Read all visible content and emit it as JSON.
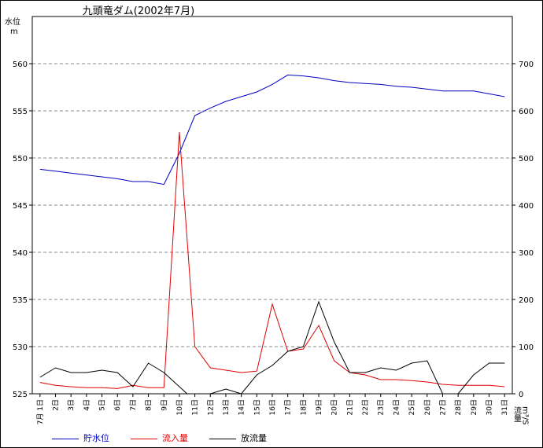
{
  "chart_data": {
    "type": "line",
    "title": "九頭竜ダム(2002年7月)",
    "categories": [
      "7月 1日",
      "2日",
      "3日",
      "4日",
      "5日",
      "6日",
      "7日",
      "8日",
      "9日",
      "10日",
      "11日",
      "12日",
      "13日",
      "14日",
      "15日",
      "16日",
      "17日",
      "18日",
      "19日",
      "20日",
      "21日",
      "22日",
      "23日",
      "24日",
      "25日",
      "26日",
      "27日",
      "28日",
      "29日",
      "30日",
      "31日"
    ],
    "x_points": [
      1,
      2,
      3,
      4,
      5,
      6,
      7,
      8,
      9,
      10,
      10.5,
      11,
      12,
      13,
      14,
      15,
      16,
      17,
      18,
      19,
      20,
      21,
      22,
      23,
      24,
      25,
      26,
      27,
      28,
      29,
      30,
      31
    ],
    "y_left": {
      "label": "水位",
      "unit": "m",
      "min": 525,
      "max": 565,
      "ticks": [
        525,
        530,
        535,
        540,
        545,
        550,
        555,
        560
      ]
    },
    "y_right": {
      "label": "流量",
      "unit": "m³/S",
      "min": 0,
      "max": 800,
      "ticks": [
        0,
        100,
        200,
        300,
        400,
        500,
        600,
        700
      ]
    },
    "series": [
      {
        "name": "貯水位",
        "color": "#0000c0",
        "axis": "left",
        "points": [
          [
            1,
            548.8
          ],
          [
            2,
            548.6
          ],
          [
            3,
            548.4
          ],
          [
            4,
            548.2
          ],
          [
            5,
            548.0
          ],
          [
            6,
            547.8
          ],
          [
            7,
            547.5
          ],
          [
            8,
            547.5
          ],
          [
            9,
            547.2
          ],
          [
            10,
            550.5
          ],
          [
            11,
            554.5
          ],
          [
            12,
            555.3
          ],
          [
            13,
            556.0
          ],
          [
            14,
            556.5
          ],
          [
            15,
            557.0
          ],
          [
            16,
            557.8
          ],
          [
            17,
            558.8
          ],
          [
            18,
            558.7
          ],
          [
            19,
            558.5
          ],
          [
            20,
            558.2
          ],
          [
            21,
            558.0
          ],
          [
            22,
            557.9
          ],
          [
            23,
            557.8
          ],
          [
            24,
            557.6
          ],
          [
            25,
            557.5
          ],
          [
            26,
            557.3
          ],
          [
            27,
            557.1
          ],
          [
            28,
            557.1
          ],
          [
            29,
            557.1
          ],
          [
            30,
            556.8
          ],
          [
            31,
            556.5
          ]
        ]
      },
      {
        "name": "流入量",
        "color": "#e00000",
        "axis": "right",
        "points": [
          [
            1,
            24
          ],
          [
            2,
            18
          ],
          [
            3,
            15
          ],
          [
            4,
            13
          ],
          [
            5,
            13
          ],
          [
            6,
            11
          ],
          [
            7,
            18
          ],
          [
            8,
            13
          ],
          [
            9,
            13
          ],
          [
            10,
            555
          ],
          [
            11,
            100
          ],
          [
            12,
            55
          ],
          [
            13,
            50
          ],
          [
            14,
            45
          ],
          [
            15,
            48
          ],
          [
            16,
            190
          ],
          [
            17,
            90
          ],
          [
            18,
            95
          ],
          [
            19,
            145
          ],
          [
            20,
            70
          ],
          [
            21,
            45
          ],
          [
            22,
            40
          ],
          [
            23,
            30
          ],
          [
            24,
            30
          ],
          [
            25,
            28
          ],
          [
            26,
            25
          ],
          [
            27,
            20
          ],
          [
            28,
            18
          ],
          [
            29,
            18
          ],
          [
            30,
            18
          ],
          [
            31,
            15
          ]
        ]
      },
      {
        "name": "放流量",
        "color": "#000000",
        "axis": "right",
        "points": [
          [
            1,
            35
          ],
          [
            2,
            55
          ],
          [
            3,
            45
          ],
          [
            4,
            45
          ],
          [
            5,
            50
          ],
          [
            6,
            45
          ],
          [
            7,
            15
          ],
          [
            8,
            65
          ],
          [
            9,
            45
          ],
          [
            10,
            15
          ],
          [
            10.5,
            0
          ],
          [
            11,
            0
          ],
          [
            12,
            0
          ],
          [
            13,
            10
          ],
          [
            14,
            0
          ],
          [
            15,
            40
          ],
          [
            16,
            60
          ],
          [
            17,
            90
          ],
          [
            18,
            100
          ],
          [
            19,
            195
          ],
          [
            20,
            110
          ],
          [
            21,
            45
          ],
          [
            22,
            45
          ],
          [
            23,
            55
          ],
          [
            24,
            50
          ],
          [
            25,
            65
          ],
          [
            26,
            70
          ],
          [
            27,
            0
          ],
          [
            28,
            0
          ],
          [
            29,
            40
          ],
          [
            30,
            65
          ],
          [
            31,
            65
          ]
        ]
      }
    ],
    "grid": "horizontal dashed",
    "legend": "bottom"
  }
}
